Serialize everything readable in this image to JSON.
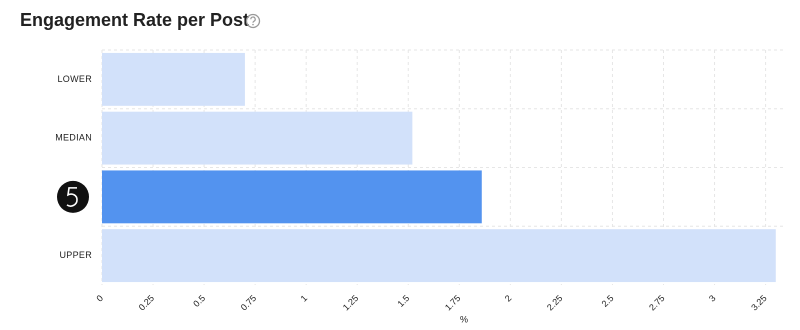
{
  "chart_data": {
    "type": "hbar",
    "title": "Engagement Rate per Post",
    "categories": [
      "LOWER",
      "MEDIAN",
      null,
      "UPPER"
    ],
    "values": [
      0.7,
      1.52,
      1.86,
      3.3
    ],
    "colors": [
      "#d2e1fa",
      "#d2e1fa",
      "#5393ef",
      "#d2e1fa"
    ],
    "xlabel": "%",
    "xlim": [
      0,
      3.35
    ],
    "xticks": [
      0,
      0.25,
      0.5,
      0.75,
      1,
      1.25,
      1.5,
      1.75,
      2,
      2.25,
      2.5,
      2.75,
      3,
      3.25
    ],
    "grid": true
  }
}
